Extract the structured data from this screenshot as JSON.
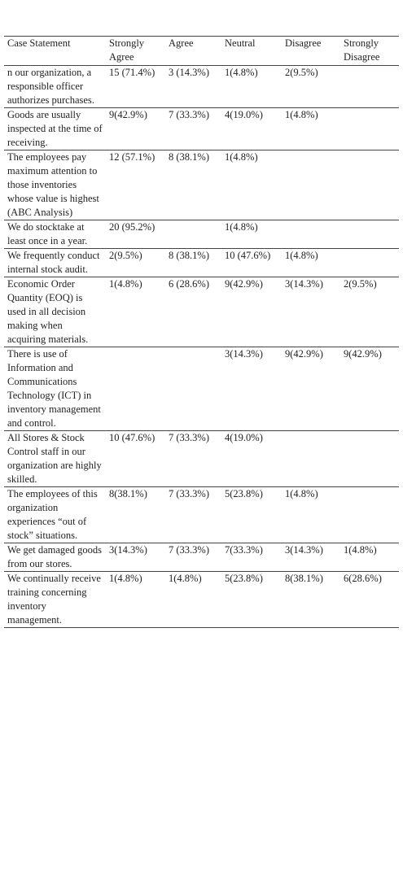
{
  "table": {
    "header": [
      "Case Statement",
      "Strongly Agree",
      "Agree",
      "Neutral",
      "Disagree",
      "Strongly Disagree"
    ],
    "rows": [
      [
        "n our organization, a responsible officer authorizes purchases.",
        "15 (71.4%)",
        "3 (14.3%)",
        "1(4.8%)",
        "2(9.5%)",
        null
      ],
      [
        "Goods are usually inspected at the time of receiving.",
        "9(42.9%)",
        "7 (33.3%)",
        "4(19.0%)",
        "1(4.8%)",
        null
      ],
      [
        "The employees pay maximum attention to those inventories whose value is highest (ABC Analysis)",
        "12 (57.1%)",
        "8 (38.1%)",
        "1(4.8%)",
        null,
        null
      ],
      [
        "We do stocktake at least once in a year.",
        "20 (95.2%)",
        null,
        "1(4.8%)",
        null,
        null
      ],
      [
        "We frequently conduct internal stock audit.",
        "2(9.5%)",
        "8 (38.1%)",
        "10 (47.6%)",
        "1(4.8%)",
        null
      ],
      [
        "Economic Order Quantity (EOQ) is used in all decision making when acquiring materials.",
        "1(4.8%)",
        "6 (28.6%)",
        "9(42.9%)",
        "3(14.3%)",
        "2(9.5%)"
      ],
      [
        "There is use of Information and Communications Technology (ICT) in inventory management and control.",
        null,
        null,
        "3(14.3%)",
        "9(42.9%)",
        "9(42.9%)"
      ],
      [
        "All Stores & Stock Control staff in our organization are highly skilled.",
        "10 (47.6%)",
        "7 (33.3%)",
        "4(19.0%)",
        null,
        null
      ],
      [
        "The employees of this organization experiences “out of stock” situations.",
        "8(38.1%)",
        "7 (33.3%)",
        "5(23.8%)",
        "1(4.8%)",
        null
      ],
      [
        "We get damaged goods from our stores.",
        "3(14.3%)",
        "7 (33.3%)",
        "7(33.3%)",
        "3(14.3%)",
        "1(4.8%)"
      ],
      [
        "We continually receive training concerning inventory management.",
        "1(4.8%)",
        "1(4.8%)",
        "5(23.8%)",
        "8(38.1%)",
        "6(28.6%)"
      ]
    ]
  }
}
